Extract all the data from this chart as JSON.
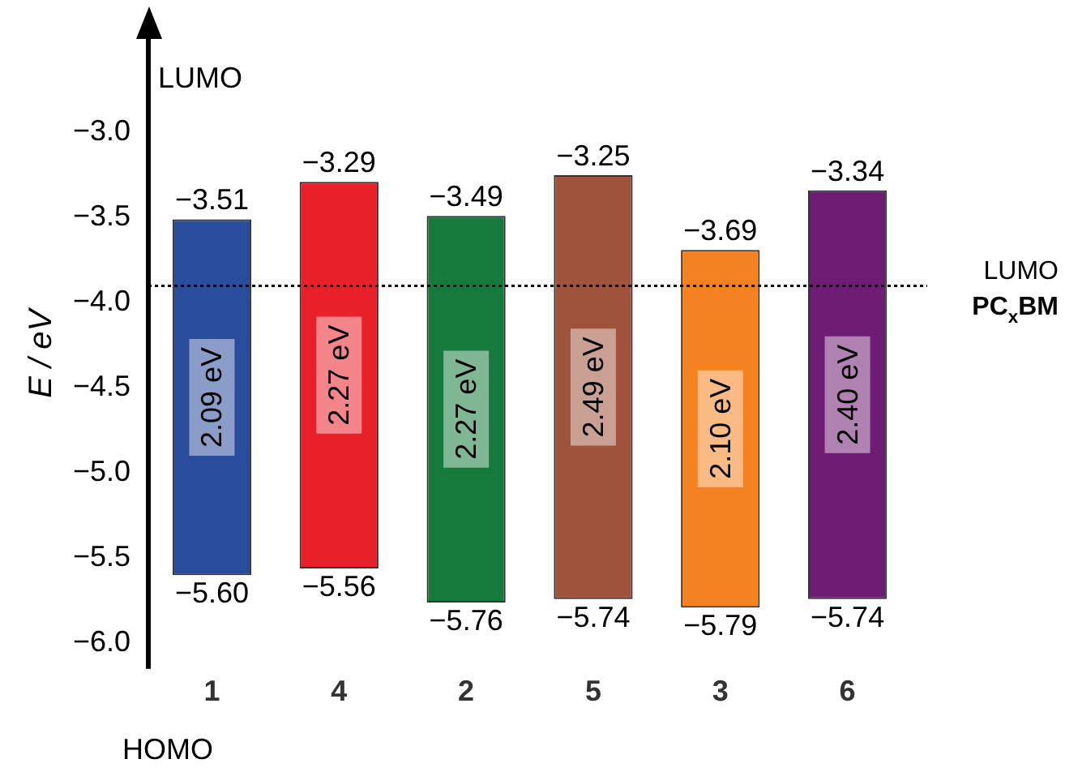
{
  "chart_data": {
    "type": "bar",
    "ylabel": "E / eV",
    "categories": [
      "1",
      "4",
      "2",
      "5",
      "3",
      "6"
    ],
    "base": [
      -5.6,
      -5.56,
      -5.76,
      -5.74,
      -5.79,
      -5.74
    ],
    "values": [
      2.09,
      2.27,
      2.27,
      2.49,
      2.1,
      2.4
    ],
    "colors": [
      "#2a4c9c",
      "#e8202a",
      "#167a3c",
      "#a0533c",
      "#f58220",
      "#6e1c74"
    ],
    "value_labels": [
      "2.09 eV",
      "2.27 eV",
      "2.27 eV",
      "2.49 eV",
      "2.10 eV",
      "2.40 eV"
    ],
    "ylim": [
      -6.15,
      -2.45
    ],
    "yticks": [
      {
        "value": -3.0,
        "label": "−3.0"
      },
      {
        "value": -3.5,
        "label": "−3.5"
      },
      {
        "value": -4.0,
        "label": "−4.0"
      },
      {
        "value": -4.5,
        "label": "−4.5"
      },
      {
        "value": -5.0,
        "label": "−5.0"
      },
      {
        "value": -5.5,
        "label": "−5.5"
      },
      {
        "value": -6.0,
        "label": "−6.0"
      }
    ],
    "ref_lines": [
      {
        "axis": "y",
        "value": -3.9,
        "label": "LUMO PC$_{x}$BM",
        "line_style": "dotted",
        "color": "#000000"
      }
    ],
    "annotations": [
      "LUMO",
      "HOMO",
      {
        "text": "−3.51",
        "x": "1",
        "y": -3.51
      },
      {
        "text": "−3.29",
        "x": "4",
        "y": -3.29
      },
      {
        "text": "−3.49",
        "x": "2",
        "y": -3.49
      },
      {
        "text": "−3.25",
        "x": "5",
        "y": -3.25
      },
      {
        "text": "−3.69",
        "x": "3",
        "y": -3.69
      },
      {
        "text": "−3.34",
        "x": "6",
        "y": -3.34
      },
      {
        "text": "−5.60",
        "x": "1",
        "y": -5.6
      },
      {
        "text": "−5.56",
        "x": "4",
        "y": -5.56
      },
      {
        "text": "−5.76",
        "x": "2",
        "y": -5.76
      },
      {
        "text": "−5.74",
        "x": "5",
        "y": -5.74
      },
      {
        "text": "−5.79",
        "x": "3",
        "y": -5.79
      },
      {
        "text": "−5.74",
        "x": "6",
        "y": -5.74
      }
    ],
    "grid": false,
    "legend": false
  }
}
